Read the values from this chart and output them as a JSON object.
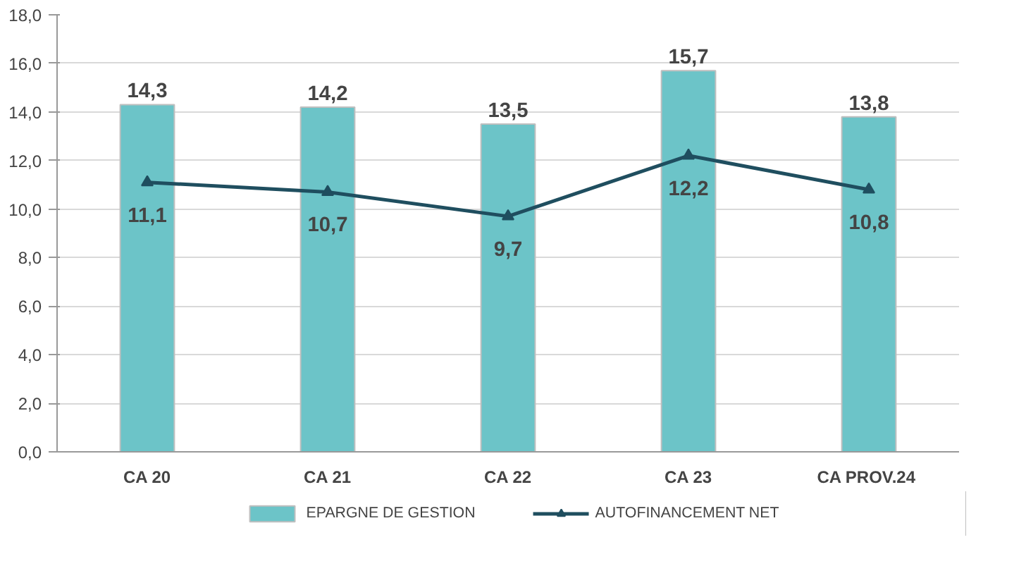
{
  "chart_data": {
    "type": "bar",
    "categories": [
      "CA 20",
      "CA 21",
      "CA 22",
      "CA 23",
      "CA  PROV.24"
    ],
    "series": [
      {
        "name": "EPARGNE DE GESTION",
        "color": "#6cc4c8",
        "values": [
          14.3,
          14.2,
          13.5,
          15.7,
          13.8
        ],
        "value_labels": [
          "14,3",
          "14,2",
          "13,5",
          "15,7",
          "13,8"
        ]
      },
      {
        "name": "AUTOFINANCEMENT NET",
        "type": "line",
        "color": "#1f4e5f",
        "marker": "triangle",
        "values": [
          11.1,
          10.7,
          9.7,
          12.2,
          10.8
        ],
        "value_labels": [
          "11,1",
          "10,7",
          "9,7",
          "12,2",
          "10,8"
        ]
      }
    ],
    "ylim": [
      0,
      18
    ],
    "yticks": [
      {
        "value": 0,
        "label": "0,0"
      },
      {
        "value": 2,
        "label": "2,0"
      },
      {
        "value": 4,
        "label": "4,0"
      },
      {
        "value": 6,
        "label": "6,0"
      },
      {
        "value": 8,
        "label": "8,0"
      },
      {
        "value": 10,
        "label": "10,0"
      },
      {
        "value": 12,
        "label": "12,0"
      },
      {
        "value": 14,
        "label": "14,0"
      },
      {
        "value": 16,
        "label": "16,0"
      },
      {
        "value": 18,
        "label": "18,0"
      }
    ],
    "grid": "y",
    "legend": "bottom"
  }
}
